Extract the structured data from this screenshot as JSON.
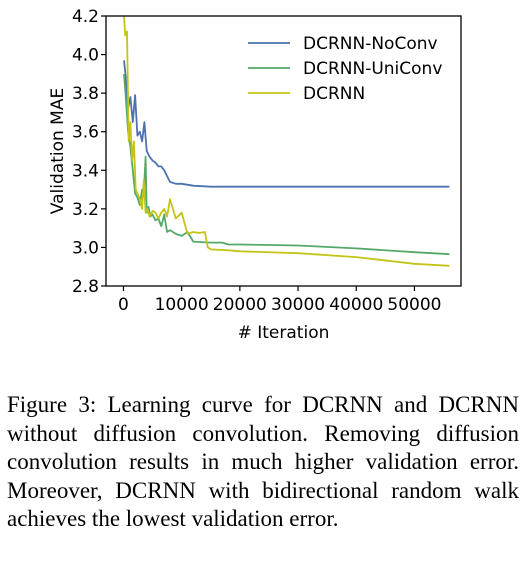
{
  "chart_data": {
    "type": "line",
    "title": "",
    "xlabel": "# Iteration",
    "ylabel": "Validation MAE",
    "xlim": [
      -3000,
      58000
    ],
    "ylim": [
      2.8,
      4.2
    ],
    "x_ticks": [
      0,
      10000,
      20000,
      30000,
      40000,
      50000
    ],
    "x_tick_labels": [
      "0",
      "10000",
      "20000",
      "30000",
      "40000",
      "50000"
    ],
    "y_ticks": [
      2.8,
      3.0,
      3.2,
      3.4,
      3.6,
      3.8,
      4.0,
      4.2
    ],
    "y_tick_labels": [
      "2.8",
      "3.0",
      "3.2",
      "3.4",
      "3.6",
      "3.8",
      "4.0",
      "4.2"
    ],
    "grid": false,
    "legend_position": "top-right",
    "series": [
      {
        "name": "DCRNN-NoConv",
        "color": "#4c72b0",
        "x": [
          100,
          400,
          800,
          1200,
          1600,
          2000,
          2400,
          2800,
          3200,
          3600,
          4000,
          4500,
          5000,
          5500,
          6000,
          6500,
          7000,
          7500,
          8000,
          9000,
          10000,
          12000,
          15000,
          20000,
          30000,
          40000,
          50000,
          56000
        ],
        "y": [
          3.97,
          3.88,
          3.72,
          3.78,
          3.65,
          3.79,
          3.58,
          3.6,
          3.55,
          3.65,
          3.5,
          3.47,
          3.45,
          3.44,
          3.42,
          3.42,
          3.4,
          3.37,
          3.34,
          3.33,
          3.33,
          3.32,
          3.315,
          3.315,
          3.315,
          3.315,
          3.315,
          3.315
        ]
      },
      {
        "name": "DCRNN-UniConv",
        "color": "#55a868",
        "x": [
          100,
          400,
          800,
          1200,
          1600,
          2000,
          2400,
          2800,
          3200,
          3500,
          3800,
          4000,
          4300,
          4600,
          5000,
          5500,
          6000,
          6500,
          7000,
          7500,
          8000,
          9000,
          10000,
          11000,
          12000,
          15000,
          17000,
          18000,
          20000,
          30000,
          40000,
          50000,
          56000
        ],
        "y": [
          3.9,
          3.78,
          3.6,
          3.52,
          3.4,
          3.28,
          3.26,
          3.22,
          3.3,
          3.28,
          3.47,
          3.18,
          3.21,
          3.16,
          3.17,
          3.14,
          3.15,
          3.11,
          3.17,
          3.08,
          3.09,
          3.07,
          3.06,
          3.08,
          3.03,
          3.025,
          3.025,
          3.015,
          3.015,
          3.01,
          2.995,
          2.975,
          2.965
        ]
      },
      {
        "name": "DCRNN",
        "color": "#c4c418",
        "x": [
          100,
          300,
          600,
          900,
          1200,
          1500,
          1800,
          2100,
          2400,
          2800,
          3200,
          3500,
          3800,
          4100,
          4500,
          5000,
          5500,
          6000,
          6500,
          7000,
          7500,
          8000,
          9000,
          10000,
          11000,
          12000,
          13000,
          14000,
          14500,
          15000,
          18000,
          20000,
          30000,
          40000,
          50000,
          56000
        ],
        "y": [
          4.2,
          4.1,
          4.12,
          3.55,
          3.65,
          3.45,
          3.55,
          3.3,
          3.28,
          3.25,
          3.2,
          3.35,
          3.18,
          3.2,
          3.16,
          3.19,
          3.18,
          3.15,
          3.18,
          3.2,
          3.16,
          3.25,
          3.15,
          3.18,
          3.07,
          3.08,
          3.075,
          3.08,
          3.0,
          2.99,
          2.985,
          2.98,
          2.97,
          2.95,
          2.915,
          2.905
        ]
      }
    ]
  },
  "caption": {
    "text": "Figure 3:  Learning curve for DCRNN and DCRNN without diffusion convolution. Removing diffusion convolution results in much higher validation error.  Moreover, DCRNN with bidirectional random walk achieves the lowest validation error."
  }
}
